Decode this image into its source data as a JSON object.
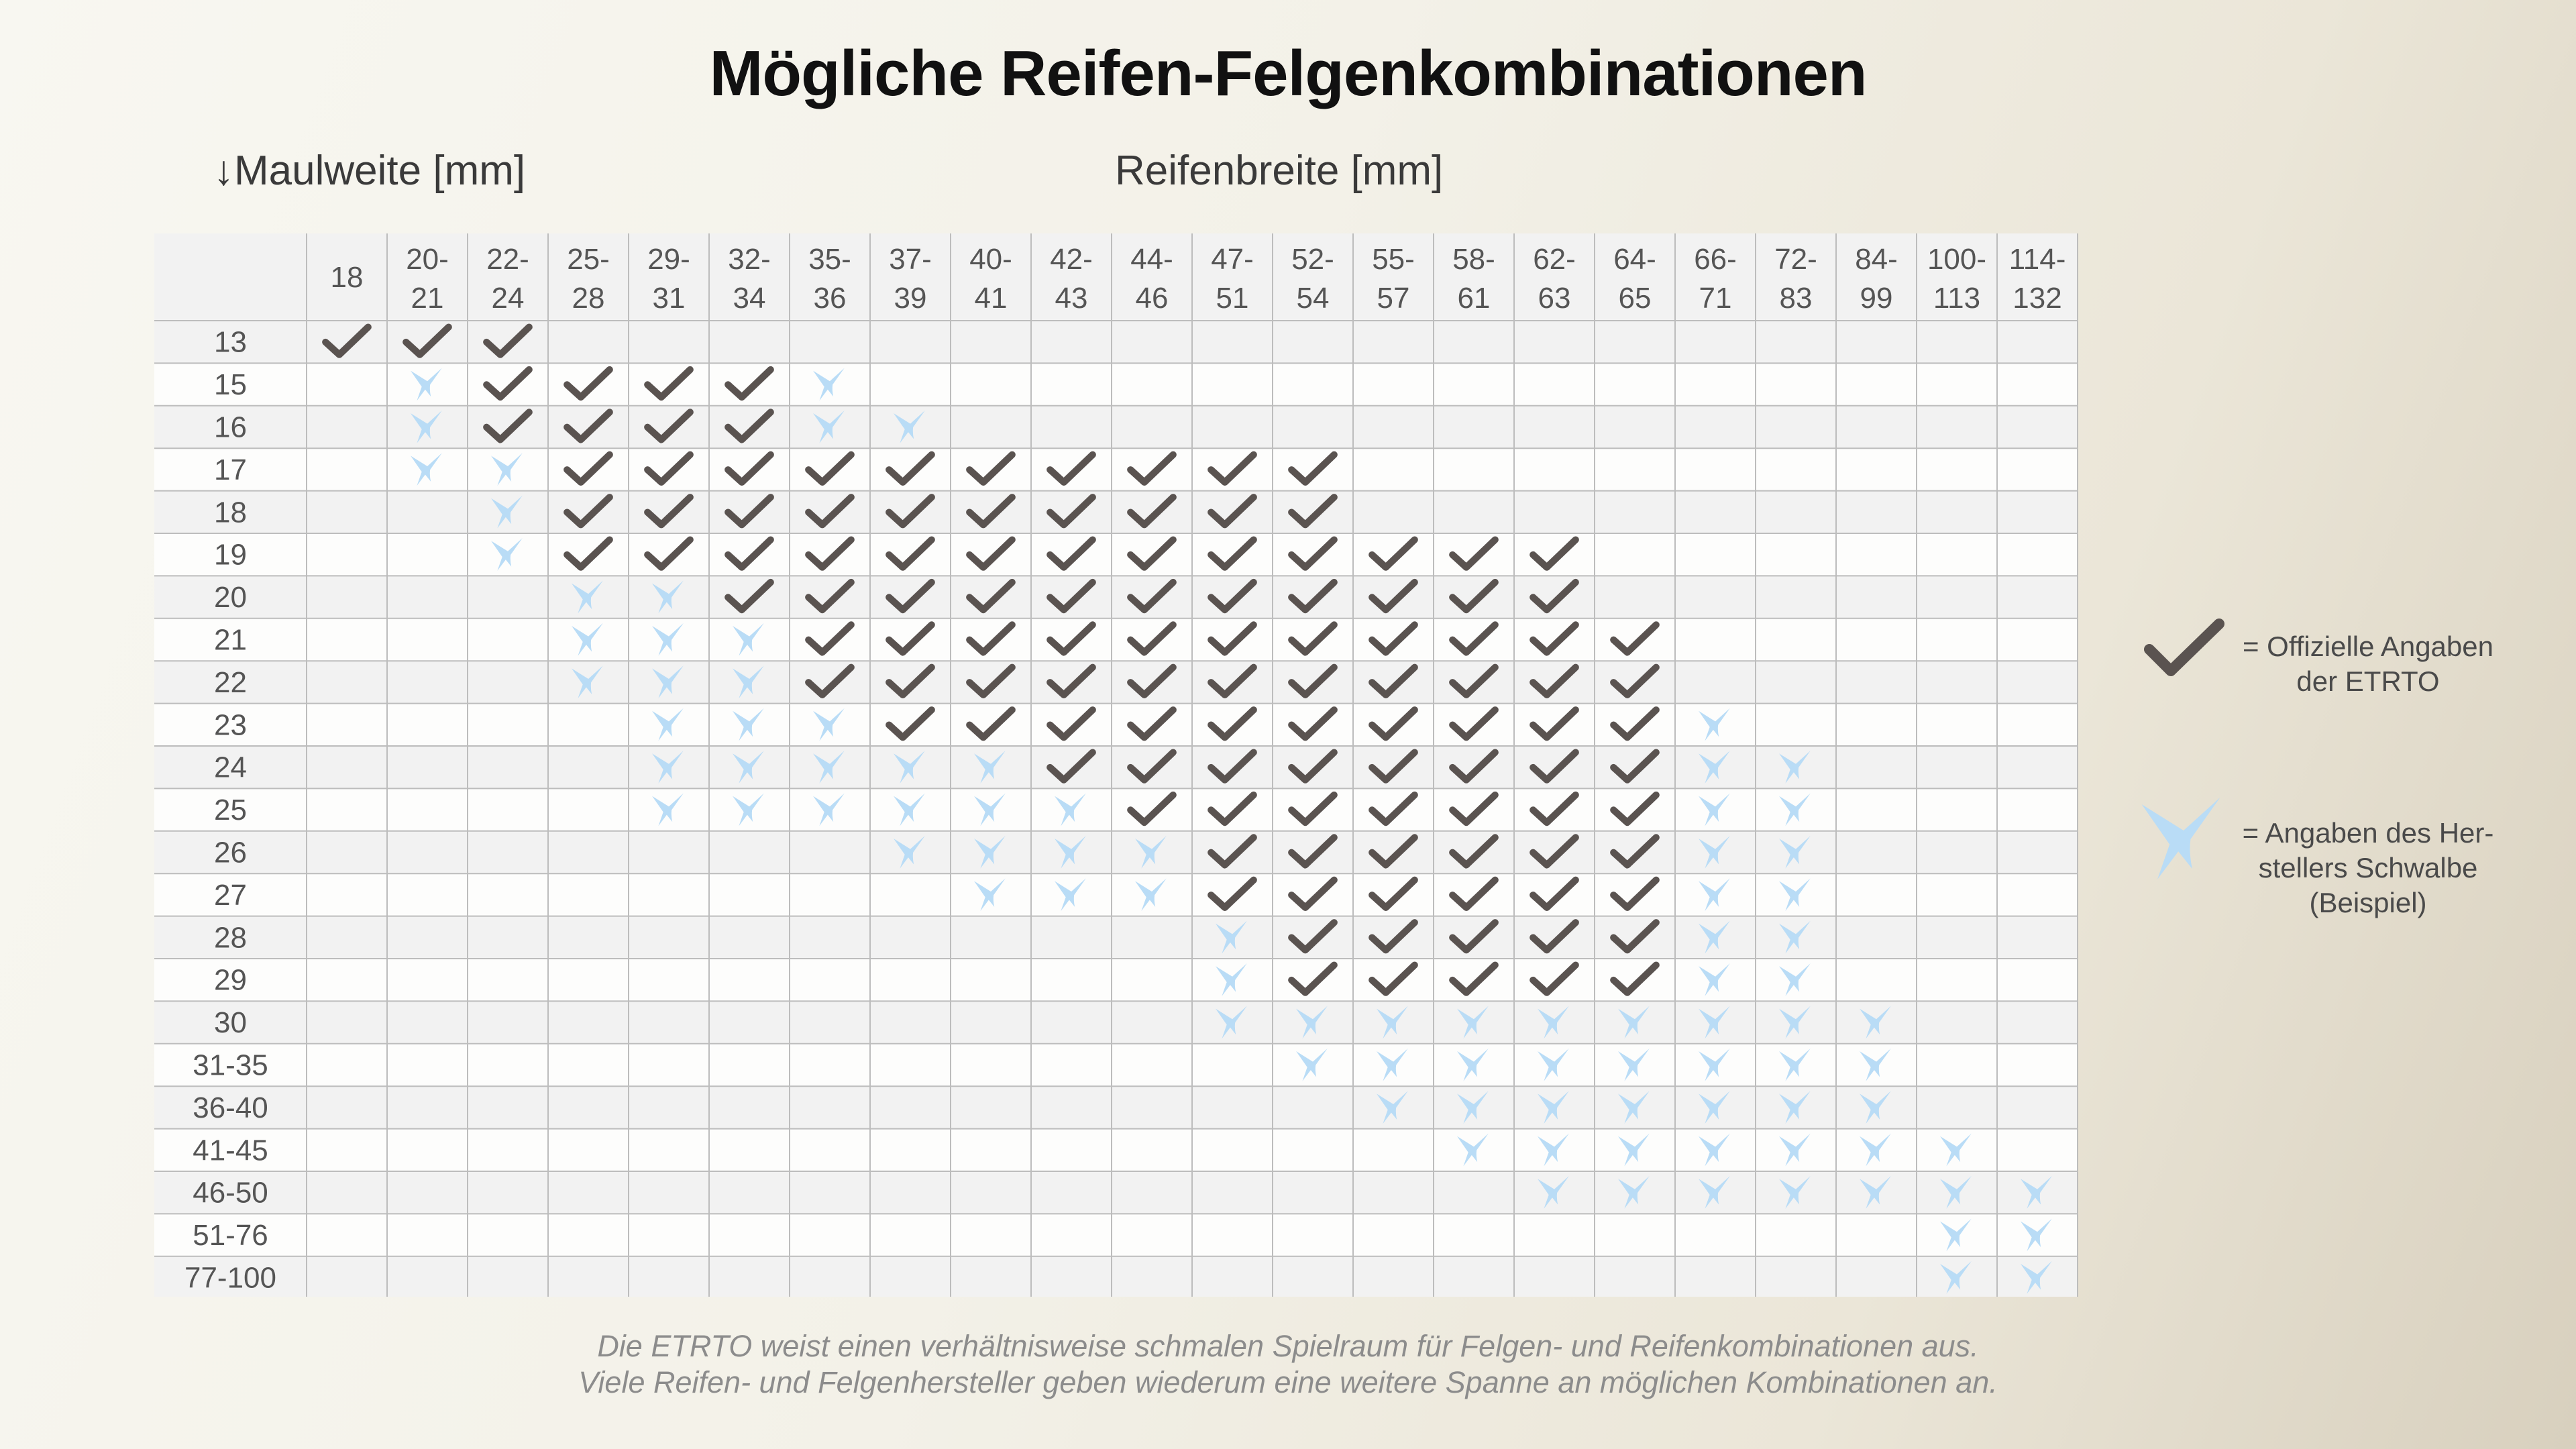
{
  "colors": {
    "check": "#5a5350",
    "bird": "#b9dcf6",
    "header_bg": "#f2f2f2",
    "row_odd": "#f2f2f2",
    "row_even": "#fdfdfc",
    "grid_line": "#bdbdbd",
    "text": "#555555"
  },
  "icons": {
    "official": "checkmark-icon",
    "manufacturer": "swallow-bird-icon"
  },
  "chart_data": {
    "type": "table",
    "title": "Mögliche Reifen-Felgenkombinationen",
    "row_axis_label": "Maulweite [mm]",
    "row_axis_arrow": "↓",
    "column_axis_label": "Reifenbreite [mm]",
    "columns": [
      {
        "top": "18",
        "bottom": ""
      },
      {
        "top": "20-",
        "bottom": "21"
      },
      {
        "top": "22-",
        "bottom": "24"
      },
      {
        "top": "25-",
        "bottom": "28"
      },
      {
        "top": "29-",
        "bottom": "31"
      },
      {
        "top": "32-",
        "bottom": "34"
      },
      {
        "top": "35-",
        "bottom": "36"
      },
      {
        "top": "37-",
        "bottom": "39"
      },
      {
        "top": "40-",
        "bottom": "41"
      },
      {
        "top": "42-",
        "bottom": "43"
      },
      {
        "top": "44-",
        "bottom": "46"
      },
      {
        "top": "47-",
        "bottom": "51"
      },
      {
        "top": "52-",
        "bottom": "54"
      },
      {
        "top": "55-",
        "bottom": "57"
      },
      {
        "top": "58-",
        "bottom": "61"
      },
      {
        "top": "62-",
        "bottom": "63"
      },
      {
        "top": "64-",
        "bottom": "65"
      },
      {
        "top": "66-",
        "bottom": "71"
      },
      {
        "top": "72-",
        "bottom": "83"
      },
      {
        "top": "84-",
        "bottom": "99"
      },
      {
        "top": "100-",
        "bottom": "113"
      },
      {
        "top": "114-",
        "bottom": "132"
      }
    ],
    "rows": [
      "13",
      "15",
      "16",
      "17",
      "18",
      "19",
      "20",
      "21",
      "22",
      "23",
      "24",
      "25",
      "26",
      "27",
      "28",
      "29",
      "30",
      "31-35",
      "36-40",
      "41-45",
      "46-50",
      "51-76",
      "77-100"
    ],
    "cell_codes": {
      "C": "official",
      "S": "manufacturer",
      ".": "none"
    },
    "cells": [
      "CCC...................",
      ".SCCCCS...............",
      ".SCCCCSS..............",
      ".SSCCCCCCCCCC.........",
      "..SCCCCCCCCCC.........",
      "..SCCCCCCCCCCCCC......",
      "...SSCCCCCCCCCCC......",
      "...SSSCCCCCCCCCCC.....",
      "...SSSCCCCCCCCCCC.....",
      "....SSSCCCCCCCCCCS....",
      "....SSSSSCCCCCCCCSS...",
      "....SSSSSSCCCCCCCSS...",
      ".......SSSSCCCCCCSS...",
      "........SSSCCCCCCSS...",
      "...........SCCCCCSS...",
      "...........SCCCCCSS...",
      "...........SSSSSSSSS..",
      "............SSSSSSSS..",
      ".............SSSSSSS..",
      "..............SSSSSSS.",
      "...............SSSSSSS",
      "....................SS",
      "....................SS"
    ]
  },
  "legend": {
    "official_line1": "= Offizielle Angaben",
    "official_line2": "der ETRTO",
    "manufacturer_line1": "= Angaben des Her-",
    "manufacturer_line2": "stellers Schwalbe",
    "manufacturer_line3": "(Beispiel)"
  },
  "footnote": {
    "line1": "Die ETRTO weist einen verhältnisweise schmalen Spielraum für Felgen- und Reifenkombinationen aus.",
    "line2": "Viele Reifen- und Felgenhersteller geben wiederum eine weitere Spanne an möglichen Kombinationen an."
  }
}
